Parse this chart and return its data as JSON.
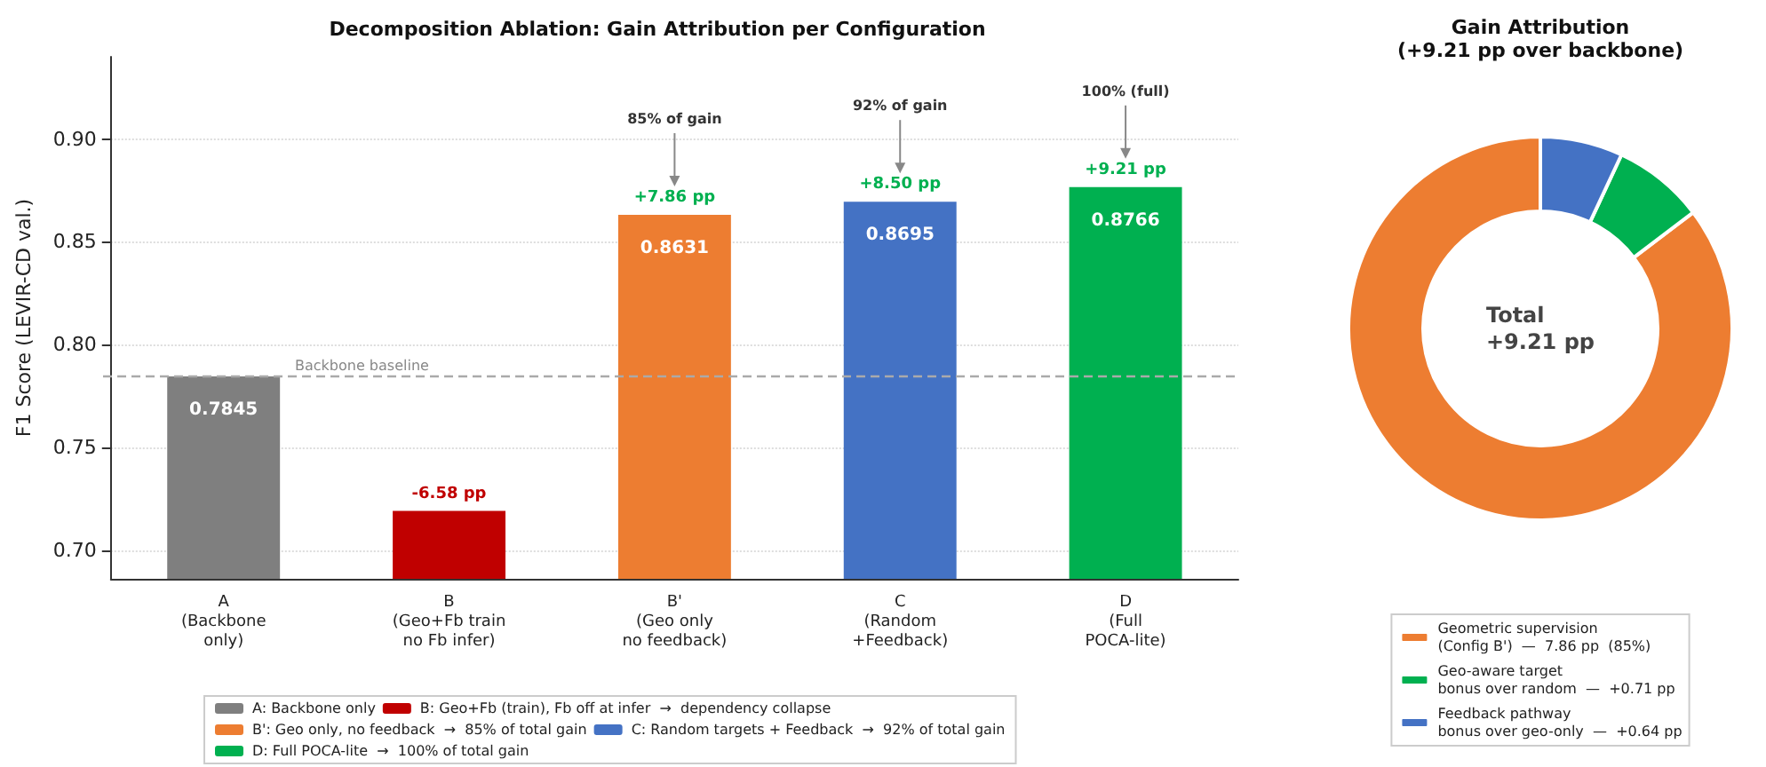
{
  "chart_data": [
    {
      "type": "bar",
      "title": "Decomposition Ablation: Gain Attribution per Configuration",
      "ylabel": "F1 Score (LEVIR-CD val.)",
      "categories": [
        "A\n(Backbone\nonly)",
        "B\n(Geo+Fb train\nno Fb infer)",
        "B'\n(Geo only\nno feedback)",
        "C\n(Random\n+Feedback)",
        "D\n(Full\nPOCA-lite)"
      ],
      "series": [
        {
          "name": "A: Backbone only",
          "color": "#7f7f7f",
          "values": [
            0.7845,
            null,
            null,
            null,
            null
          ],
          "value_labels": [
            "0.7845",
            null,
            null,
            null,
            null
          ]
        },
        {
          "name": "B: Geo+Fb (train), Fb off at infer  →  dependency collapse",
          "color": "#c00000",
          "values": [
            null,
            0.719,
            null,
            null,
            null
          ],
          "value_labels": [
            null,
            null,
            null,
            null,
            null
          ]
        },
        {
          "name": "B': Geo only, no feedback  →  85% of total gain",
          "color": "#ed7d31",
          "values": [
            null,
            null,
            0.8631,
            null,
            null
          ],
          "value_labels": [
            null,
            null,
            "0.8631",
            null,
            null
          ]
        },
        {
          "name": "C: Random targets + Feedback  →  92% of total gain",
          "color": "#4472c4",
          "values": [
            null,
            null,
            null,
            0.8695,
            null
          ],
          "value_labels": [
            null,
            null,
            null,
            "0.8695",
            null
          ]
        },
        {
          "name": "D: Full POCA-lite  →  100% of total gain",
          "color": "#00b050",
          "values": [
            null,
            null,
            null,
            null,
            0.8766
          ],
          "value_labels": [
            null,
            null,
            null,
            null,
            "0.8766"
          ]
        }
      ],
      "ylim": [
        0.686,
        0.94
      ],
      "yticks": [
        {
          "value": 0.7,
          "label": "0.70"
        },
        0.75,
        {
          "value": 0.8,
          "label": "0.80"
        },
        0.85,
        {
          "value": 0.9,
          "label": "0.90"
        }
      ],
      "grid": "y",
      "legend": "bottom",
      "ref_lines": [
        {
          "axis": "y",
          "value": 0.7845,
          "label": "Backbone baseline",
          "color": "#aaaaaa",
          "line_style": "dashed"
        }
      ],
      "annotations": [
        {
          "text": "-6.58 pp",
          "x": "B\n(Geo+Fb train\nno Fb infer)",
          "y": 0.719
        },
        {
          "text": "+7.86 pp",
          "x": "B'\n(Geo only\nno feedback)",
          "y": 0.8631
        },
        "85% of gain",
        {
          "text": "+8.50 pp",
          "x": "C\n(Random\n+Feedback)",
          "y": 0.8695
        },
        "92% of gain",
        {
          "text": "+9.21 pp",
          "x": "D\n(Full\nPOCA-lite)",
          "y": 0.8766
        },
        "100% (full)"
      ]
    },
    {
      "type": "donut",
      "title": "Gain Attribution\n(+9.21 pp over backbone)",
      "categories": [
        "Geometric supervision\n(Config B')  —  7.86 pp  (85%)",
        "Geo-aware target\nbonus over random  —  +0.71 pp",
        "Feedback pathway\nbonus over geo-only  —  +0.64 pp"
      ],
      "values": [
        7.86,
        0.71,
        0.64
      ],
      "colors": [
        "#ed7d31",
        "#00b050",
        "#4472c4"
      ],
      "legend": "bottom",
      "annotations": [
        "Total\n+9.21 pp"
      ]
    }
  ]
}
